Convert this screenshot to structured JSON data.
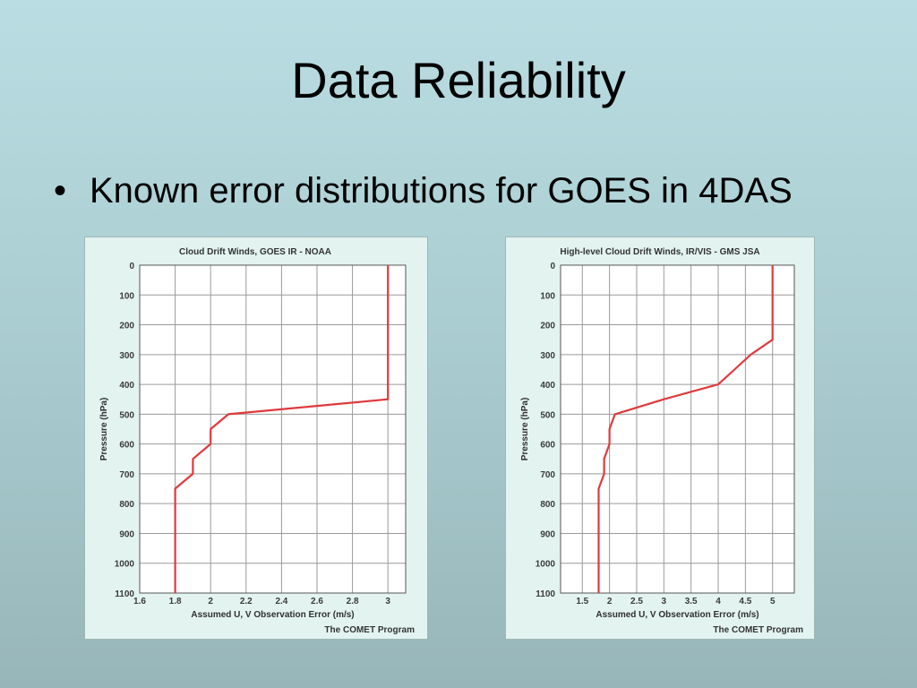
{
  "slide": {
    "title": "Data Reliability",
    "bullets": [
      "Known error distributions for GOES in 4DAS"
    ]
  },
  "colors": {
    "background_top": "#b9dde2",
    "background_bottom": "#98b6ba",
    "panel": "#e3f4f0",
    "line": "#e0393d",
    "grid": "#9a9a9a"
  },
  "chart_data": [
    {
      "type": "line",
      "title": "Cloud Drift Winds, GOES IR - NOAA",
      "xlabel": "Assumed U, V Observation Error (m/s)",
      "ylabel": "Pressure (hPa)",
      "credit": "The COMET Program",
      "xlim": [
        1.6,
        3.1
      ],
      "ylim": [
        0,
        1100
      ],
      "y_inverted": true,
      "xticks": [
        1.6,
        1.8,
        2,
        2.2,
        2.4,
        2.6,
        2.8,
        3
      ],
      "xtick_labels": [
        "1.6",
        "1.8",
        "2",
        "2.2",
        "2.4",
        "2.6",
        "2.8",
        "3"
      ],
      "yticks": [
        0,
        100,
        200,
        300,
        400,
        500,
        600,
        700,
        800,
        900,
        1000,
        1100
      ],
      "grid": true,
      "series": [
        {
          "x": [
            3,
            3,
            2.1,
            2,
            2,
            1.9,
            1.9,
            1.8,
            1.8
          ],
          "y": [
            0,
            450,
            500,
            550,
            600,
            650,
            700,
            750,
            1100
          ]
        }
      ]
    },
    {
      "type": "line",
      "title": "High-level Cloud Drift Winds, IR/VIS - GMS JSA",
      "xlabel": "Assumed U, V Observation Error (m/s)",
      "ylabel": "Pressure (hPa)",
      "credit": "The COMET Program",
      "xlim": [
        1.1,
        5.4
      ],
      "ylim": [
        0,
        1100
      ],
      "y_inverted": true,
      "xticks": [
        1.5,
        2,
        2.5,
        3,
        3.5,
        4,
        4.5,
        5
      ],
      "xtick_labels": [
        "1.5",
        "2",
        "2.5",
        "3",
        "3.5",
        "4",
        "4.5",
        "5"
      ],
      "yticks": [
        0,
        100,
        200,
        300,
        400,
        500,
        600,
        700,
        800,
        900,
        1000,
        1100
      ],
      "grid": true,
      "series": [
        {
          "x": [
            5,
            5,
            4.6,
            4.3,
            4,
            3,
            2.1,
            2,
            2,
            1.9,
            1.9,
            1.8,
            1.8
          ],
          "y": [
            0,
            250,
            300,
            350,
            400,
            450,
            500,
            550,
            600,
            650,
            700,
            750,
            1100
          ]
        }
      ]
    }
  ]
}
